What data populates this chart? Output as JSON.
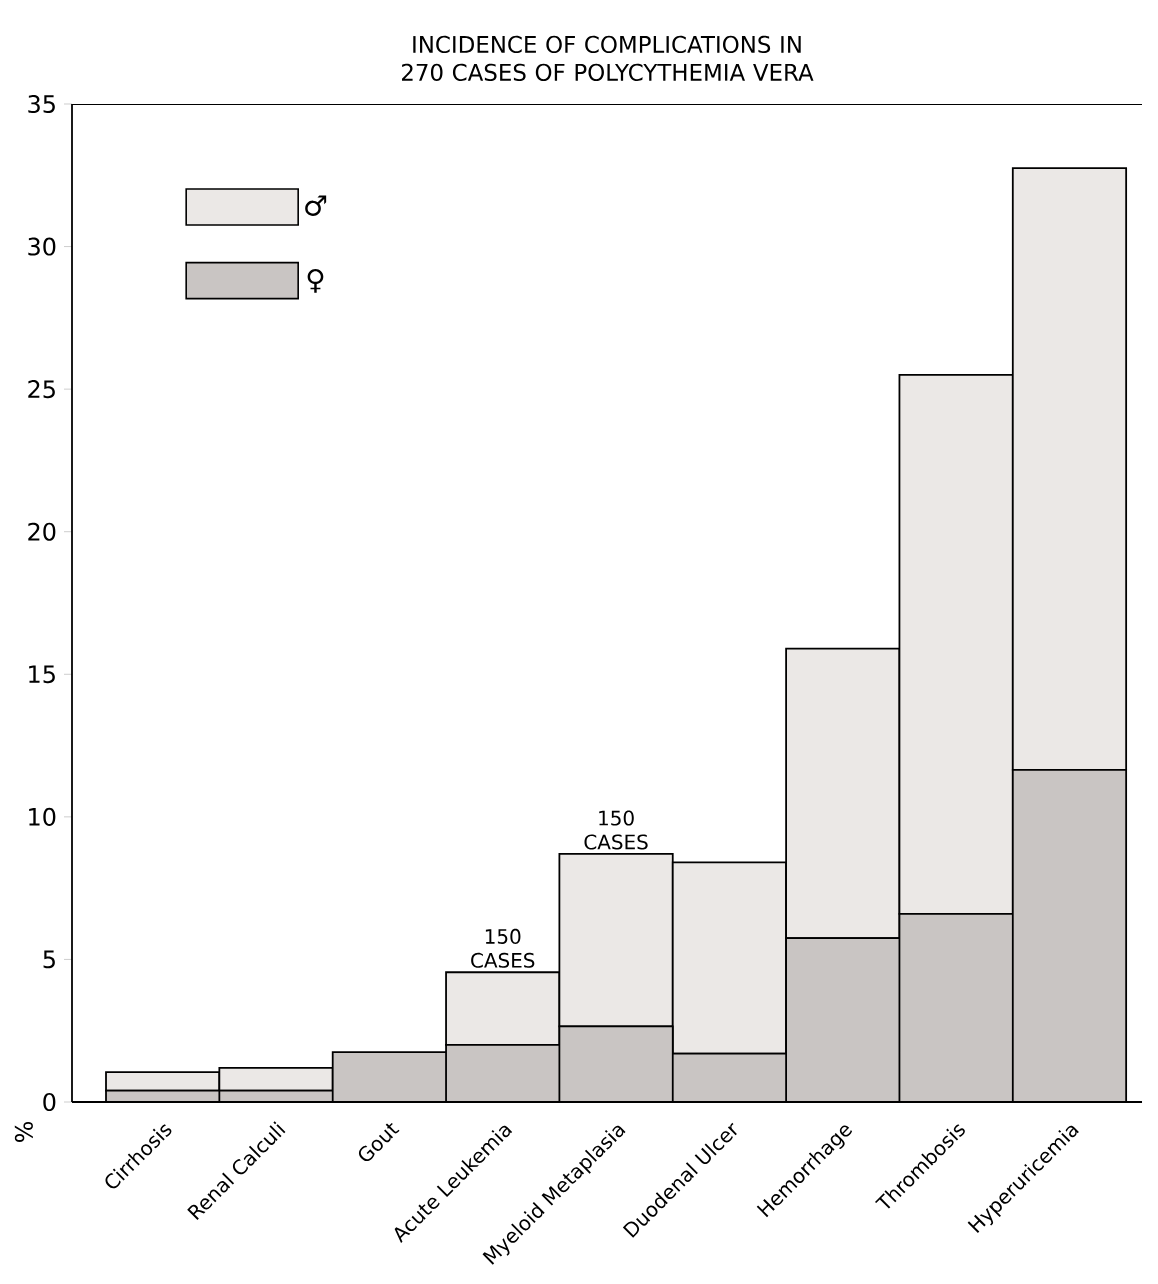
{
  "chart_data": {
    "type": "bar",
    "stacked": true,
    "title": "INCIDENCE OF COMPLICATIONS IN 270 CASES OF POLYCYTHEMIA VERA",
    "ylabel": "%",
    "categories": [
      "Cirrhosis",
      "Renal Calculi",
      "Gout",
      "Acute Leukemia",
      "Myeloid Metaplasia",
      "Duodenal Ulcer",
      "Hemorrhage",
      "Thrombosis",
      "Hyperuricemia"
    ],
    "series": [
      {
        "name": "♀",
        "color": "#c9c5c3",
        "values": [
          0.4,
          0.4,
          1.75,
          2.0,
          2.65,
          1.7,
          5.75,
          6.6,
          11.65
        ]
      },
      {
        "name": "♂",
        "color": "#ebe8e6",
        "values": [
          0.65,
          0.8,
          0,
          2.55,
          6.05,
          6.7,
          10.15,
          18.9,
          21.1
        ]
      }
    ],
    "ylim": [
      0,
      35
    ],
    "yticks": [
      0,
      5,
      10,
      15,
      20,
      25,
      30,
      35
    ],
    "legend": "top left",
    "grid": false,
    "annotations": [
      {
        "text": "150 CASES",
        "x": "Acute Leukemia",
        "y": 4.55
      },
      {
        "text": "150 CASES",
        "x": "Myeloid Metaplasia",
        "y": 8.7
      }
    ]
  }
}
